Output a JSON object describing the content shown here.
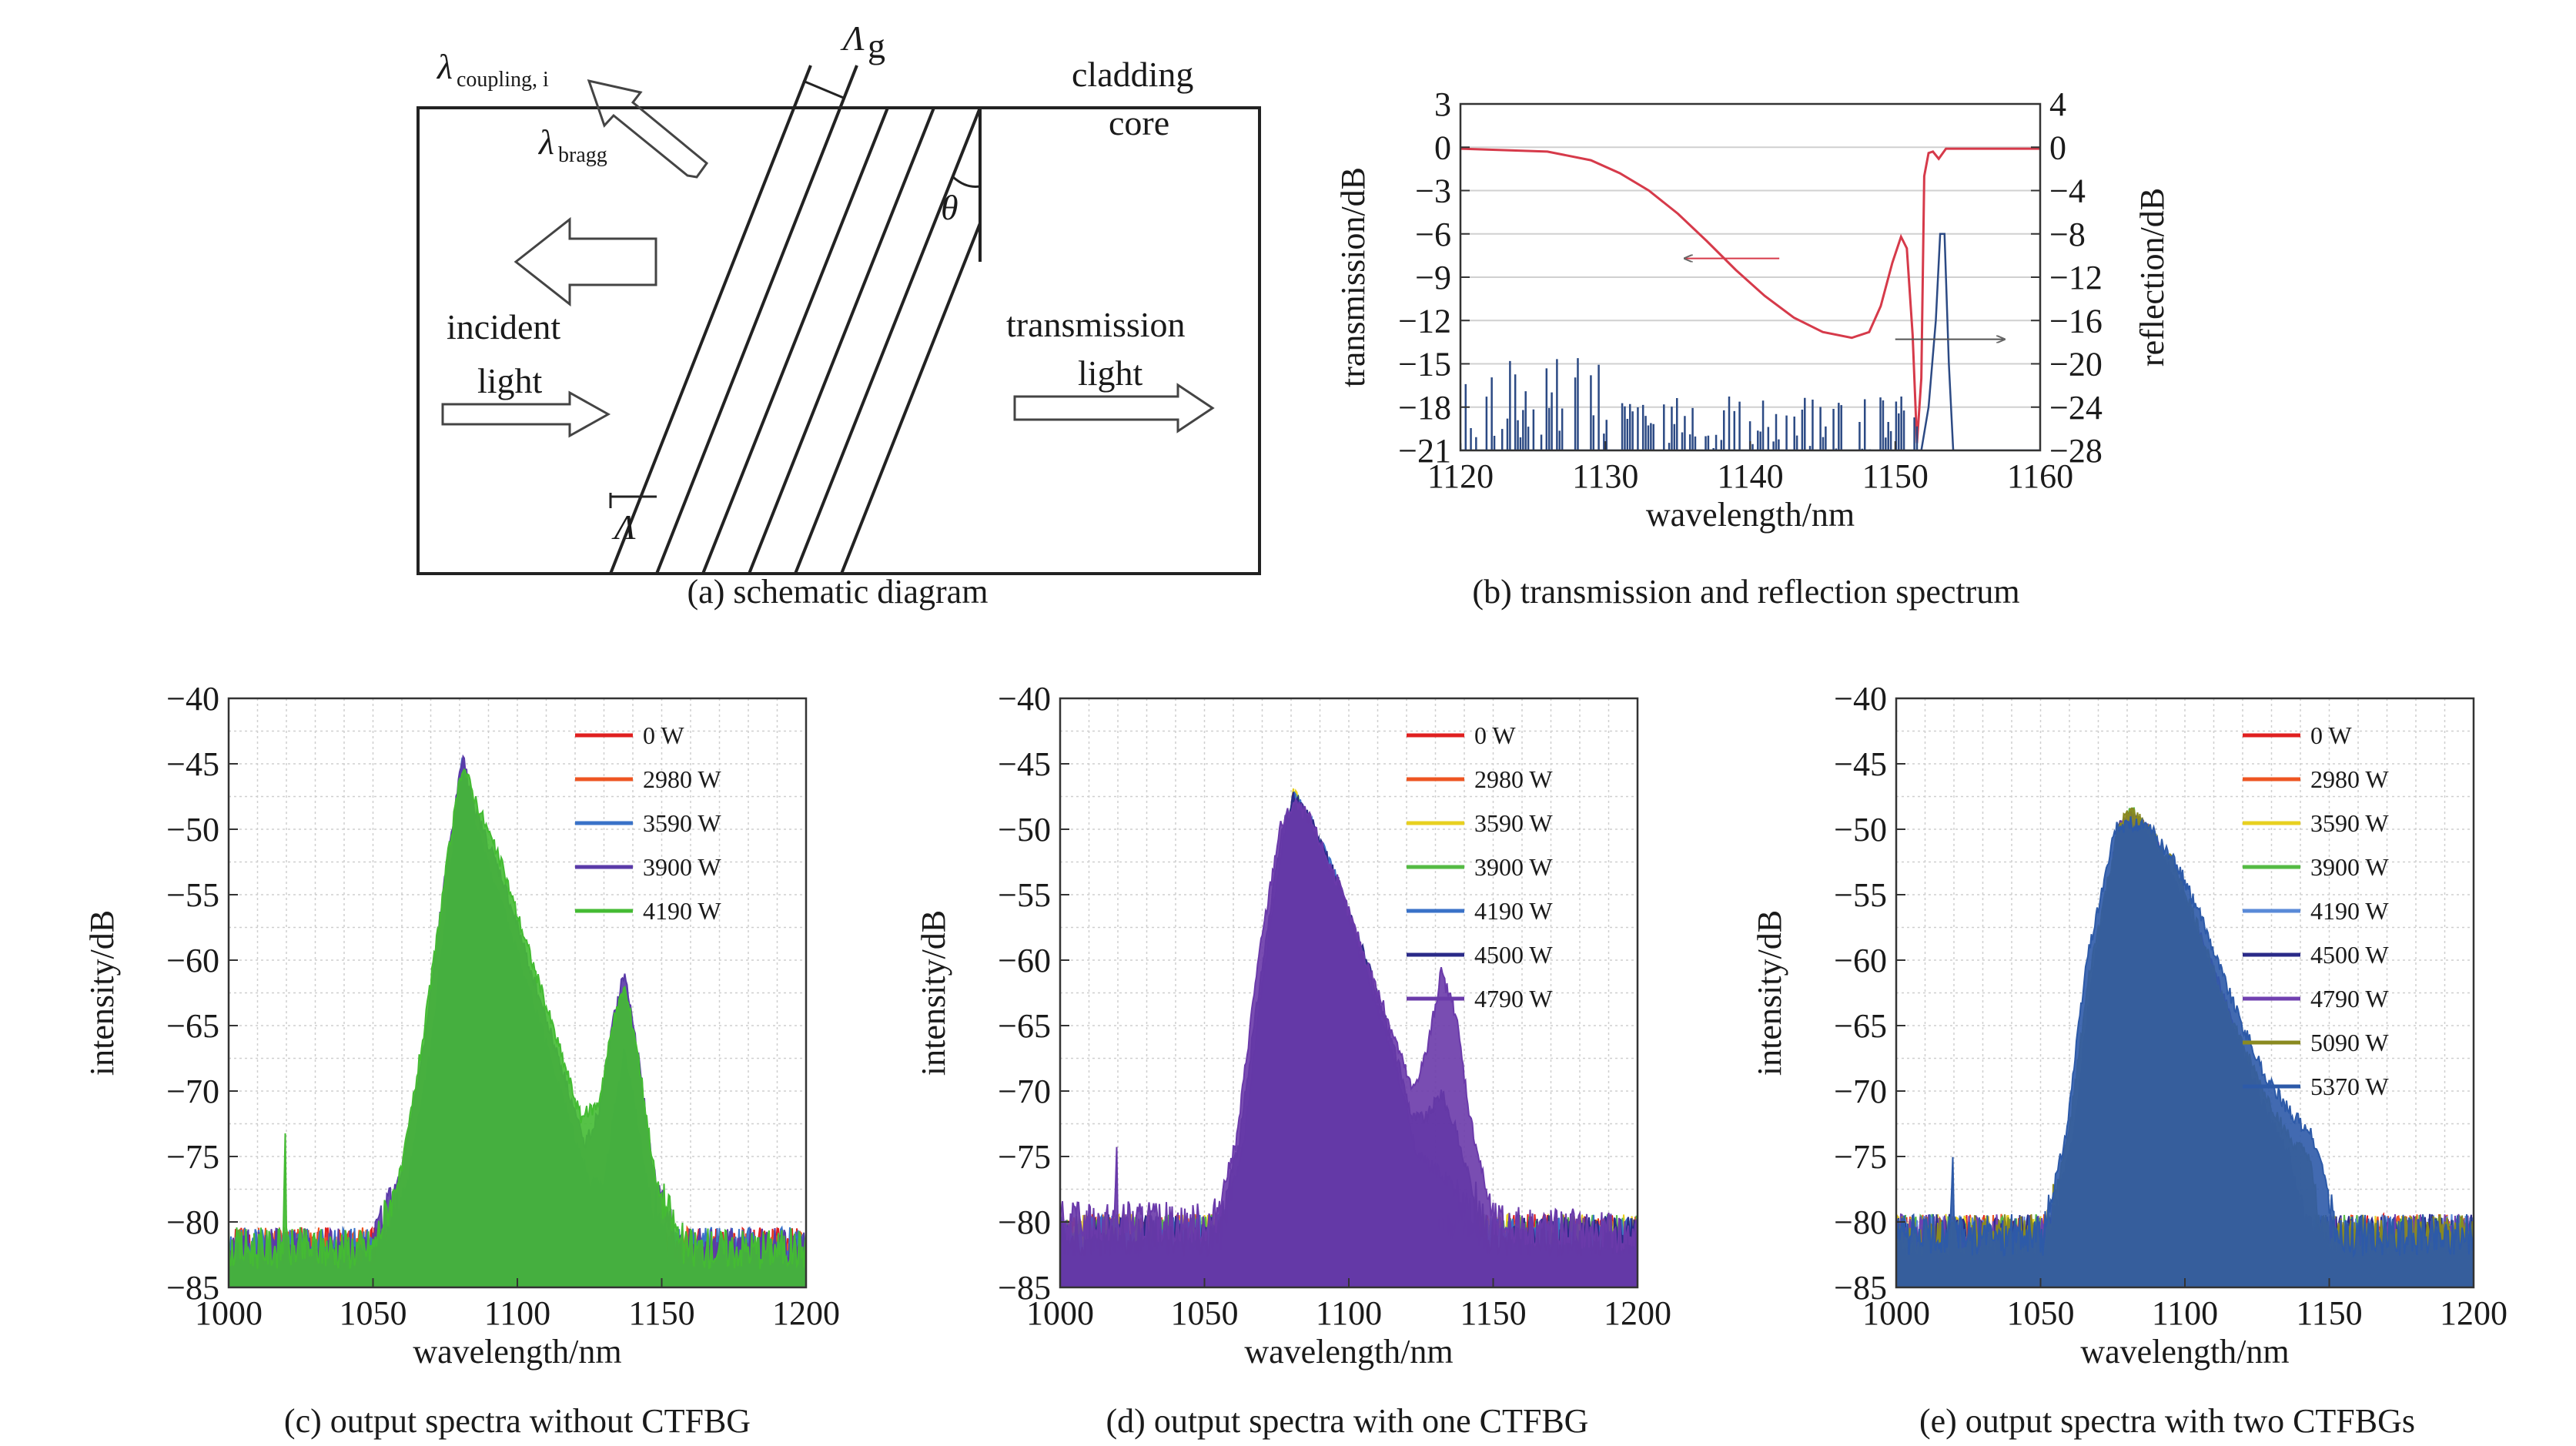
{
  "panel_a": {
    "caption": "(a) schematic diagram",
    "labels": {
      "cladding": "cladding",
      "core": "core",
      "incident_1": "incident",
      "incident_2": "light",
      "transmission_1": "transmission",
      "transmission_2": "light",
      "lambda_coupling": "λ",
      "lambda_coupling_sub": "coupling, i",
      "lambda_bragg": "λ",
      "lambda_bragg_sub": "bragg",
      "period": "Λ",
      "period_g": "Λ",
      "period_g_sub": "g",
      "theta": "θ"
    }
  },
  "panel_b": {
    "caption": "(b) transmission and reflection spectrum"
  },
  "panel_c": {
    "caption": "(c) output spectra without CTFBG"
  },
  "panel_d": {
    "caption": "(d) output spectra with one CTFBG"
  },
  "panel_e": {
    "caption": "(e) output spectra with two CTFBGs"
  },
  "chart_data": [
    {
      "id": "b",
      "type": "line",
      "xlabel": "wavelength/nm",
      "ylabel": "transmission/dB",
      "y2label": "reflection/dB",
      "xlim": [
        1120,
        1160
      ],
      "ylim": [
        -21,
        3
      ],
      "y2lim": [
        -28,
        4
      ],
      "xticks": [
        1120,
        1130,
        1140,
        1150,
        1160
      ],
      "yticks": [
        3,
        0,
        -3,
        -6,
        -9,
        -12,
        -15,
        -18,
        -21
      ],
      "y2ticks": [
        4,
        0,
        -4,
        -8,
        -12,
        -16,
        -20,
        -24,
        -28
      ],
      "grid": "horizontal",
      "series": [
        {
          "color": "#d63a4a",
          "axis": "left",
          "x": [
            1120,
            1126,
            1129,
            1131,
            1133,
            1135,
            1137,
            1139,
            1141,
            1143,
            1145,
            1147,
            1148.2,
            1149,
            1149.8,
            1150.4,
            1150.8,
            1151.2,
            1151.5,
            1151.8,
            1152.0,
            1152.3,
            1152.6,
            1153,
            1153.5,
            1160
          ],
          "y": [
            -0.1,
            -0.3,
            -0.9,
            -1.8,
            -3.0,
            -4.6,
            -6.5,
            -8.5,
            -10.3,
            -11.8,
            -12.8,
            -13.2,
            -12.8,
            -11.0,
            -8.0,
            -6.2,
            -7.0,
            -13.0,
            -20.5,
            -16.0,
            -2.0,
            -0.4,
            -0.3,
            -0.8,
            -0.1,
            -0.1
          ]
        },
        {
          "color": "#2c4a84",
          "axis": "right",
          "x": [
            1120,
            1151.8,
            1152.3,
            1152.8,
            1153.1,
            1153.4,
            1153.7,
            1154.0,
            1160
          ],
          "y": [
            -28,
            -28,
            -24,
            -16,
            -8,
            -8,
            -20,
            -28,
            -28
          ]
        }
      ],
      "annotations": [
        "←",
        "→"
      ]
    },
    {
      "id": "c",
      "type": "line",
      "xlabel": "wavelength/nm",
      "ylabel": "intensity/dB",
      "xlim": [
        1000,
        1200
      ],
      "ylim": [
        -85,
        -40
      ],
      "xticks": [
        1000,
        1050,
        1100,
        1150,
        1200
      ],
      "yticks": [
        -40,
        -45,
        -50,
        -55,
        -60,
        -65,
        -70,
        -75,
        -80,
        -85
      ],
      "grid": "dotted",
      "legend": "top-right",
      "series": [
        {
          "name": "0 W",
          "color": "#e02020",
          "x": [
            1000,
            1060,
            1072,
            1076,
            1080,
            1084,
            1089,
            1100,
            1200
          ],
          "y": [
            -82,
            -82,
            -81,
            -70,
            -57,
            -68,
            -81,
            -82,
            -82
          ]
        },
        {
          "name": "2980 W",
          "color": "#ee5522",
          "x": [
            1000,
            1055,
            1065,
            1072,
            1078,
            1081,
            1085,
            1092,
            1100,
            1110,
            1118,
            1130,
            1200
          ],
          "y": [
            -82,
            -82,
            -78,
            -66,
            -53,
            -45,
            -51,
            -57,
            -64,
            -72,
            -79,
            -82,
            -82
          ]
        },
        {
          "name": "3590 W",
          "color": "#3a72c8",
          "x": [
            1000,
            1052,
            1062,
            1070,
            1077,
            1081,
            1086,
            1095,
            1105,
            1115,
            1125,
            1130,
            1134,
            1137,
            1140,
            1145,
            1152,
            1200
          ],
          "y": [
            -82,
            -82,
            -77,
            -67,
            -53,
            -44.5,
            -50,
            -56,
            -63,
            -70,
            -77,
            -77,
            -71,
            -67,
            -70,
            -77,
            -82,
            -82
          ]
        },
        {
          "name": "3900 W",
          "color": "#5a3aa8",
          "x": [
            1000,
            1050,
            1060,
            1068,
            1076,
            1081,
            1086,
            1095,
            1105,
            1115,
            1123,
            1128,
            1133,
            1137,
            1141,
            1147,
            1155,
            1200
          ],
          "y": [
            -82,
            -82,
            -76,
            -66,
            -52,
            -44.5,
            -49,
            -54,
            -61,
            -68,
            -74,
            -72,
            -65,
            -61,
            -66,
            -76,
            -82,
            -82
          ]
        },
        {
          "name": "4190 W",
          "color": "#44bb33",
          "x": [
            1000,
            1019,
            1019.5,
            1020,
            1050,
            1060,
            1068,
            1076,
            1081,
            1086,
            1095,
            1105,
            1115,
            1122,
            1128,
            1133,
            1137,
            1141,
            1148,
            1158,
            1200
          ],
          "y": [
            -82,
            -82,
            -70.5,
            -82,
            -82,
            -76,
            -65,
            -52,
            -45,
            -48,
            -53,
            -60,
            -67,
            -72,
            -71,
            -65,
            -62,
            -66,
            -77,
            -82,
            -82
          ]
        }
      ]
    },
    {
      "id": "d",
      "type": "line",
      "xlabel": "wavelength/nm",
      "ylabel": "intensity/dB",
      "xlim": [
        1000,
        1200
      ],
      "ylim": [
        -85,
        -40
      ],
      "xticks": [
        1000,
        1050,
        1100,
        1150,
        1200
      ],
      "yticks": [
        -40,
        -45,
        -50,
        -55,
        -60,
        -65,
        -70,
        -75,
        -80,
        -85
      ],
      "grid": "dotted",
      "legend": "top-right",
      "series": [
        {
          "name": "0 W",
          "color": "#e02020",
          "x": [
            1000,
            1062,
            1072,
            1076,
            1080,
            1084,
            1089,
            1100,
            1200
          ],
          "y": [
            -81,
            -81,
            -80,
            -70,
            -57,
            -68,
            -80,
            -81,
            -81
          ]
        },
        {
          "name": "2980 W",
          "color": "#ee5522",
          "x": [
            1000,
            1058,
            1066,
            1073,
            1078,
            1081,
            1085,
            1092,
            1100,
            1108,
            1116,
            1125,
            1200
          ],
          "y": [
            -81,
            -81,
            -77,
            -65,
            -53,
            -47.5,
            -51,
            -57,
            -64,
            -71,
            -78,
            -81,
            -81
          ]
        },
        {
          "name": "3590 W",
          "color": "#e8d020",
          "x": [
            1000,
            1057,
            1065,
            1072,
            1078,
            1081,
            1086,
            1094,
            1102,
            1110,
            1118,
            1128,
            1200
          ],
          "y": [
            -81,
            -81,
            -76,
            -64,
            -52,
            -47,
            -50,
            -56,
            -63,
            -70,
            -77,
            -81,
            -81
          ]
        },
        {
          "name": "3900 W",
          "color": "#55bb44",
          "x": [
            1000,
            1056,
            1064,
            1071,
            1078,
            1081,
            1086,
            1095,
            1104,
            1113,
            1121,
            1131,
            1200
          ],
          "y": [
            -81,
            -81,
            -75,
            -63,
            -51,
            -47,
            -50,
            -55,
            -62,
            -69,
            -76,
            -81,
            -81
          ]
        },
        {
          "name": "4190 W",
          "color": "#3a72c8",
          "x": [
            1000,
            1055,
            1063,
            1070,
            1077,
            1081,
            1086,
            1096,
            1106,
            1116,
            1124,
            1130,
            1135,
            1140,
            1146,
            1200
          ],
          "y": [
            -81,
            -81,
            -75,
            -62,
            -51,
            -47.5,
            -49,
            -54,
            -61,
            -68,
            -75,
            -76,
            -77,
            -79,
            -81,
            -81
          ]
        },
        {
          "name": "4500 W",
          "color": "#2a2a88",
          "x": [
            1000,
            1054,
            1062,
            1069,
            1077,
            1081,
            1086,
            1096,
            1106,
            1116,
            1122,
            1127,
            1132,
            1137,
            1142,
            1148,
            1200
          ],
          "y": [
            -81,
            -81,
            -74,
            -62,
            -50,
            -47.5,
            -49,
            -54,
            -60,
            -67,
            -72,
            -72,
            -70,
            -73,
            -77,
            -81,
            -81
          ]
        },
        {
          "name": "4790 W",
          "color": "#6a3aaa",
          "x": [
            1000,
            1019,
            1019.5,
            1020,
            1053,
            1061,
            1068,
            1076,
            1081,
            1086,
            1096,
            1106,
            1116,
            1122,
            1127,
            1132,
            1137,
            1142,
            1150,
            1200
          ],
          "y": [
            -80,
            -80,
            -73,
            -80,
            -80,
            -74,
            -61,
            -50,
            -48,
            -49,
            -54,
            -60,
            -66,
            -70,
            -67,
            -61,
            -64,
            -72,
            -80,
            -81
          ]
        }
      ]
    },
    {
      "id": "e",
      "type": "line",
      "xlabel": "wavelength/nm",
      "ylabel": "intensity/dB",
      "xlim": [
        1000,
        1200
      ],
      "ylim": [
        -85,
        -40
      ],
      "xticks": [
        1000,
        1050,
        1100,
        1150,
        1200
      ],
      "yticks": [
        -40,
        -45,
        -50,
        -55,
        -60,
        -65,
        -70,
        -75,
        -80,
        -85
      ],
      "grid": "dotted",
      "legend": "top-right",
      "series": [
        {
          "name": "0 W",
          "color": "#e02020",
          "x": [
            1000,
            1062,
            1072,
            1076,
            1080,
            1084,
            1089,
            1100,
            1200
          ],
          "y": [
            -81,
            -81,
            -80,
            -70,
            -57,
            -68,
            -80,
            -81,
            -81
          ]
        },
        {
          "name": "2980 W",
          "color": "#ee5522",
          "x": [
            1000,
            1058,
            1066,
            1073,
            1078,
            1081,
            1085,
            1092,
            1100,
            1108,
            1116,
            1124,
            1200
          ],
          "y": [
            -81,
            -81,
            -77,
            -65,
            -53,
            -48.5,
            -51,
            -57,
            -64,
            -71,
            -78,
            -81,
            -81
          ]
        },
        {
          "name": "3590 W",
          "color": "#e8d020",
          "x": [
            1000,
            1057,
            1065,
            1072,
            1078,
            1081,
            1086,
            1094,
            1103,
            1112,
            1120,
            1128,
            1200
          ],
          "y": [
            -81,
            -81,
            -76,
            -64,
            -52,
            -49,
            -50,
            -55,
            -62,
            -69,
            -76,
            -81,
            -81
          ]
        },
        {
          "name": "3900 W",
          "color": "#55bb44",
          "x": [
            1000,
            1056,
            1064,
            1071,
            1078,
            1081,
            1086,
            1095,
            1105,
            1115,
            1123,
            1132,
            1200
          ],
          "y": [
            -81,
            -81,
            -75,
            -63,
            -51,
            -48.5,
            -50,
            -55,
            -61,
            -68,
            -75,
            -81,
            -81
          ]
        },
        {
          "name": "4190 W",
          "color": "#5a8ad8",
          "x": [
            1000,
            1055,
            1063,
            1070,
            1077,
            1081,
            1086,
            1096,
            1106,
            1116,
            1126,
            1136,
            1200
          ],
          "y": [
            -81,
            -81,
            -75,
            -62,
            -51,
            -49,
            -50,
            -54,
            -60,
            -67,
            -74,
            -81,
            -81
          ]
        },
        {
          "name": "4500 W",
          "color": "#2a2a88",
          "x": [
            1000,
            1054,
            1062,
            1069,
            1077,
            1081,
            1086,
            1096,
            1106,
            1116,
            1126,
            1134,
            1140,
            1200
          ],
          "y": [
            -81,
            -81,
            -74,
            -62,
            -50,
            -49,
            -50,
            -54,
            -60,
            -66,
            -72,
            -77,
            -81,
            -81
          ]
        },
        {
          "name": "4790 W",
          "color": "#7040b0",
          "x": [
            1000,
            1053,
            1061,
            1068,
            1077,
            1081,
            1087,
            1097,
            1107,
            1117,
            1127,
            1136,
            1142,
            1200
          ],
          "y": [
            -81,
            -81,
            -74,
            -61,
            -50,
            -49,
            -50,
            -54,
            -59,
            -65,
            -71,
            -75,
            -81,
            -81
          ]
        },
        {
          "name": "5090 W",
          "color": "#8a8a20",
          "x": [
            1000,
            1052,
            1060,
            1067,
            1077,
            1081,
            1087,
            1097,
            1107,
            1117,
            1127,
            1137,
            1143,
            1147,
            1200
          ],
          "y": [
            -81,
            -81,
            -73,
            -61,
            -50,
            -48.5,
            -50,
            -53,
            -59,
            -65,
            -70,
            -74,
            -75,
            -81,
            -81
          ]
        },
        {
          "name": "5370 W",
          "color": "#2d5aa8",
          "x": [
            1000,
            1019,
            1019.5,
            1020,
            1051,
            1059,
            1066,
            1076,
            1081,
            1088,
            1098,
            1108,
            1118,
            1128,
            1138,
            1143,
            1148,
            1152,
            1200
          ],
          "y": [
            -81,
            -81,
            -73,
            -81,
            -81,
            -73,
            -60,
            -50,
            -49.5,
            -50,
            -53,
            -58,
            -64,
            -69,
            -72,
            -73,
            -76,
            -81,
            -81
          ]
        }
      ]
    }
  ]
}
